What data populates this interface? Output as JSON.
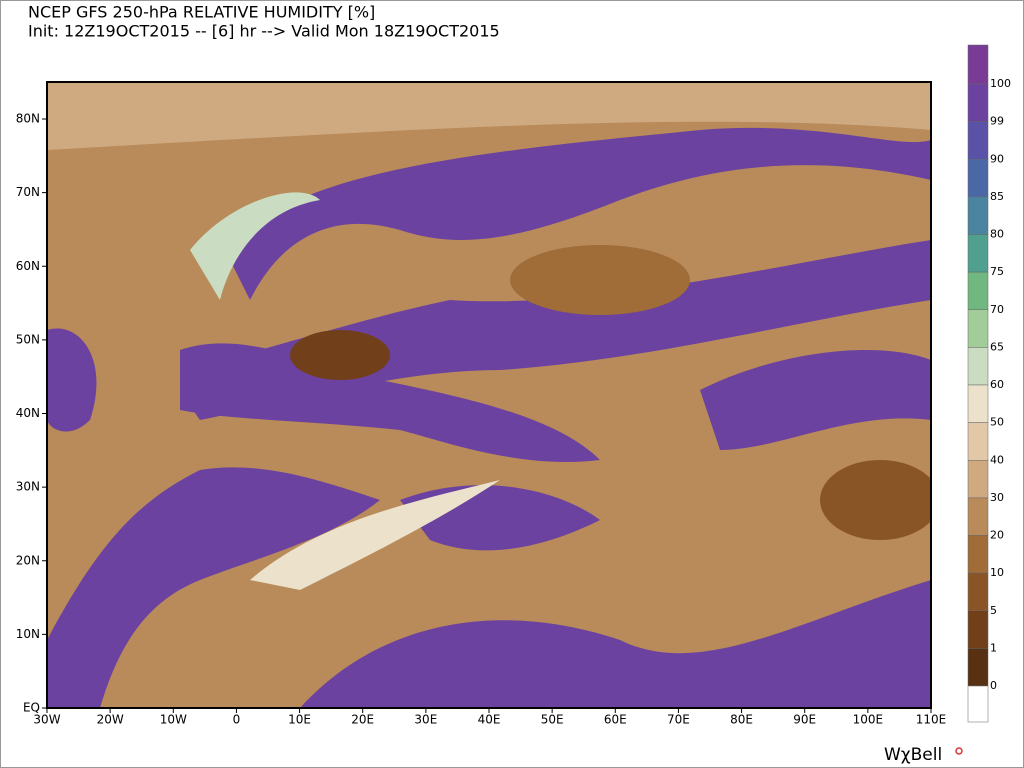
{
  "header": {
    "title": "NCEP GFS 250-hPa RELATIVE HUMIDITY [%]",
    "subtitle": "Init: 12Z19OCT2015 -- [6] hr --> Valid Mon 18Z19OCT2015"
  },
  "map": {
    "lat_labels": [
      "80N",
      "70N",
      "60N",
      "50N",
      "40N",
      "30N",
      "20N",
      "10N",
      "EQ"
    ],
    "lon_labels": [
      "30W",
      "20W",
      "10W",
      "0",
      "10E",
      "20E",
      "30E",
      "40E",
      "50E",
      "60E",
      "70E",
      "80E",
      "90E",
      "100E",
      "110E"
    ]
  },
  "colorbar": {
    "labels": [
      "100",
      "99",
      "90",
      "85",
      "80",
      "75",
      "70",
      "65",
      "60",
      "50",
      "40",
      "30",
      "20",
      "10",
      "5",
      "1",
      "0"
    ],
    "colors": [
      "#7a3b96",
      "#6c42a0",
      "#5a52a6",
      "#4a68a6",
      "#4a84a0",
      "#4fa08e",
      "#70b880",
      "#a2cc98",
      "#cadcc2",
      "#ece2cc",
      "#e2c8a6",
      "#cfaa80",
      "#b98a5a",
      "#a06c38",
      "#8a5526",
      "#71401a",
      "#583112",
      "#ffffff"
    ]
  },
  "brand": "WχBell"
}
